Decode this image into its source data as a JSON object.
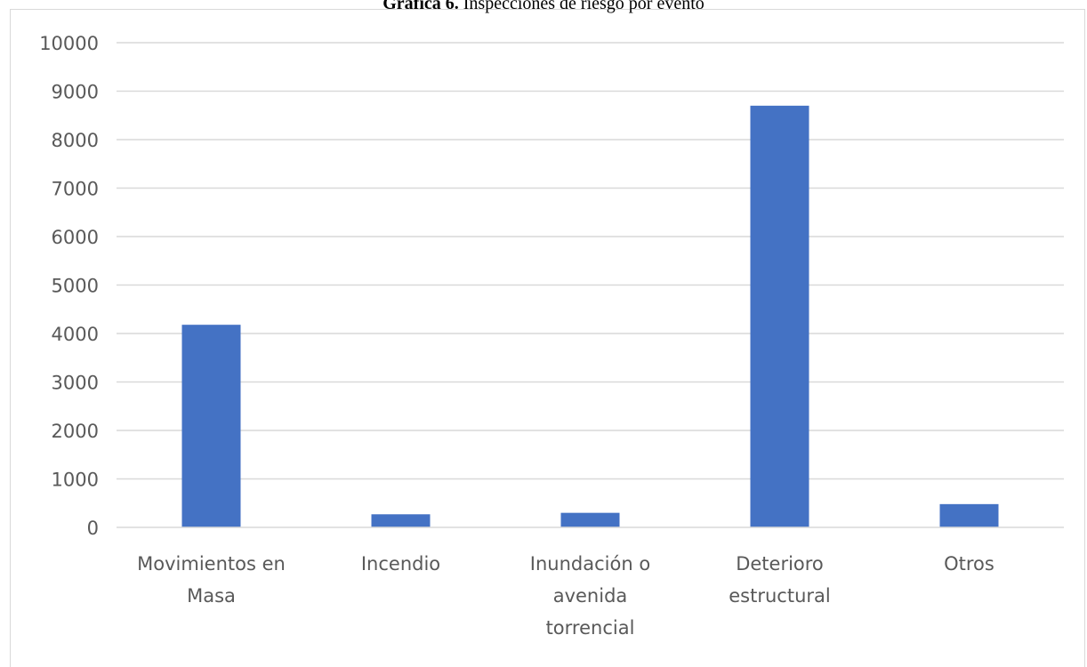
{
  "chart_title": {
    "prefix": "Gráfica 6.",
    "text": "Inspecciones de riesgo por evento"
  },
  "chart_data": {
    "type": "bar",
    "title": "Gráfica 6. Inspecciones de riesgo por evento",
    "xlabel": "",
    "ylabel": "",
    "categories": [
      [
        "Movimientos en",
        "Masa"
      ],
      [
        "Incendio"
      ],
      [
        "Inundación o",
        "avenida",
        "torrencial"
      ],
      [
        "Deterioro",
        "estructural"
      ],
      [
        "Otros"
      ]
    ],
    "values": [
      4180,
      270,
      300,
      8700,
      480
    ],
    "ylim": [
      0,
      10000
    ],
    "yticks": [
      0,
      1000,
      2000,
      3000,
      4000,
      5000,
      6000,
      7000,
      8000,
      9000,
      10000
    ],
    "grid": true,
    "legend": "none",
    "bar_color": "#4472c4",
    "grid_color": "#d9d9d9",
    "tick_label_color": "#595959"
  }
}
